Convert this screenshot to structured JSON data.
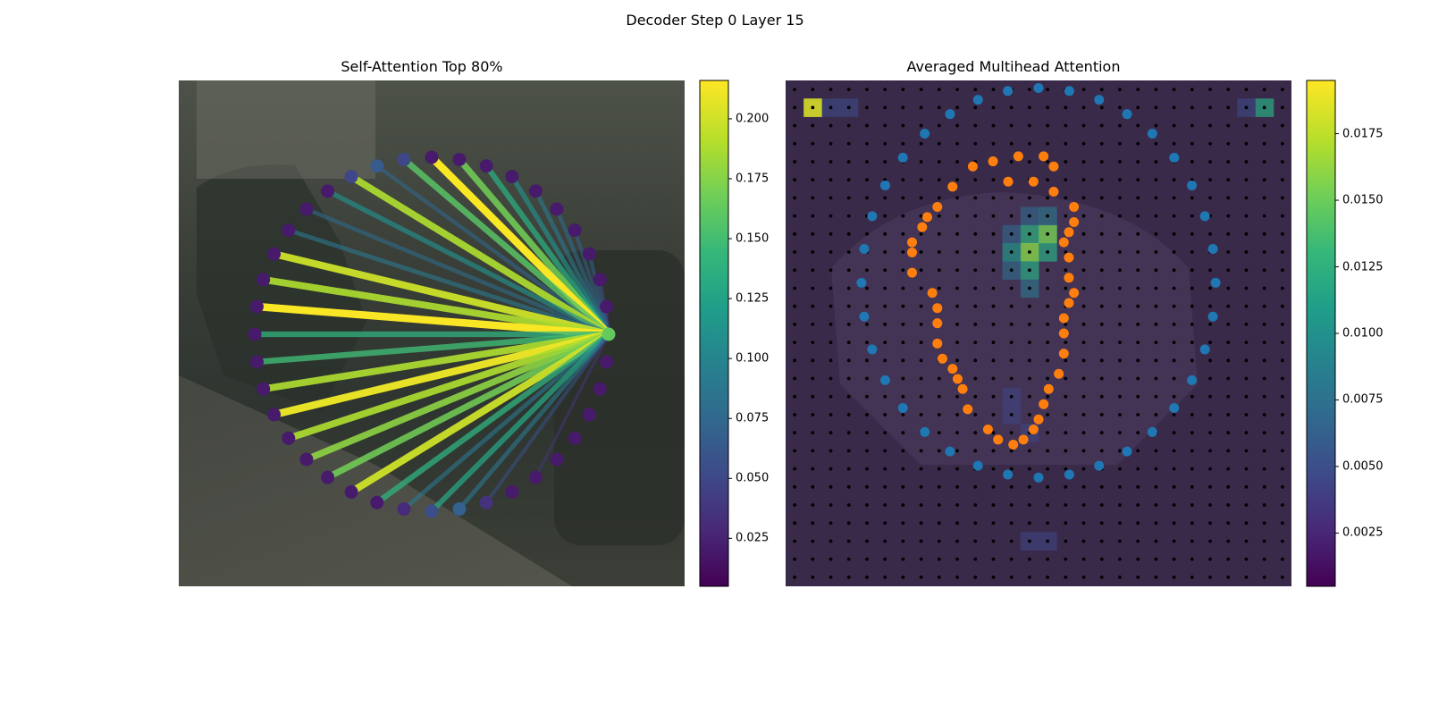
{
  "figure": {
    "suptitle": "Decoder Step 0 Layer 15"
  },
  "colormap": {
    "name": "viridis",
    "stops": [
      "#440154",
      "#482878",
      "#3e4a89",
      "#31688e",
      "#26828e",
      "#1f9e89",
      "#35b779",
      "#6ece58",
      "#b5de2b",
      "#fde725"
    ]
  },
  "chart_data": [
    {
      "type": "scatter",
      "title": "Self-Attention Top 80%",
      "description_series": "ring of 40 points with attention edges to the query point at the right",
      "ring": {
        "count": 40,
        "query_index": 0
      },
      "edges": [
        {
          "to": 1,
          "weight": 0.03
        },
        {
          "to": 2,
          "weight": 0.06
        },
        {
          "to": 3,
          "weight": 0.07
        },
        {
          "to": 4,
          "weight": 0.07
        },
        {
          "to": 5,
          "weight": 0.08
        },
        {
          "to": 6,
          "weight": 0.09
        },
        {
          "to": 7,
          "weight": 0.11
        },
        {
          "to": 8,
          "weight": 0.135
        },
        {
          "to": 9,
          "weight": 0.17
        },
        {
          "to": 10,
          "weight": 0.215
        },
        {
          "to": 11,
          "weight": 0.16
        },
        {
          "to": 12,
          "weight": 0.075
        },
        {
          "to": 13,
          "weight": 0.19
        },
        {
          "to": 14,
          "weight": 0.11
        },
        {
          "to": 15,
          "weight": 0.08
        },
        {
          "to": 16,
          "weight": 0.09
        },
        {
          "to": 17,
          "weight": 0.2
        },
        {
          "to": 18,
          "weight": 0.19
        },
        {
          "to": 19,
          "weight": 0.215
        },
        {
          "to": 20,
          "weight": 0.14
        },
        {
          "to": 21,
          "weight": 0.15
        },
        {
          "to": 22,
          "weight": 0.19
        },
        {
          "to": 23,
          "weight": 0.21
        },
        {
          "to": 24,
          "weight": 0.19
        },
        {
          "to": 25,
          "weight": 0.18
        },
        {
          "to": 26,
          "weight": 0.17
        },
        {
          "to": 27,
          "weight": 0.2
        },
        {
          "to": 28,
          "weight": 0.14
        },
        {
          "to": 29,
          "weight": 0.09
        },
        {
          "to": 30,
          "weight": 0.13
        },
        {
          "to": 31,
          "weight": 0.09
        },
        {
          "to": 32,
          "weight": 0.06
        },
        {
          "to": 34,
          "weight": 0.04
        }
      ],
      "point_weights": [
        0.165,
        0.02,
        0.02,
        0.02,
        0.02,
        0.02,
        0.02,
        0.02,
        0.02,
        0.02,
        0.02,
        0.05,
        0.065,
        0.05,
        0.02,
        0.02,
        0.02,
        0.02,
        0.02,
        0.02,
        0.02,
        0.02,
        0.02,
        0.02,
        0.02,
        0.02,
        0.02,
        0.02,
        0.02,
        0.03,
        0.055,
        0.07,
        0.035,
        0.02,
        0.02,
        0.02,
        0.02,
        0.02,
        0.02,
        0.02
      ],
      "colorbar": {
        "ticks": [
          "0.025",
          "0.050",
          "0.075",
          "0.100",
          "0.125",
          "0.150",
          "0.175",
          "0.200"
        ],
        "range": [
          0.005,
          0.216
        ]
      }
    },
    {
      "type": "heatmap",
      "title": "Averaged Multihead Attention",
      "grid": {
        "rows": 28,
        "cols": 28,
        "background_value": 0.0025
      },
      "hot_cells": [
        {
          "row": 1,
          "col": 1,
          "value": 0.0185
        },
        {
          "row": 1,
          "col": 26,
          "value": 0.012
        },
        {
          "row": 1,
          "col": 2,
          "value": 0.005
        },
        {
          "row": 1,
          "col": 3,
          "value": 0.005
        },
        {
          "row": 1,
          "col": 25,
          "value": 0.005
        },
        {
          "row": 8,
          "col": 14,
          "value": 0.0155
        },
        {
          "row": 8,
          "col": 13,
          "value": 0.0125
        },
        {
          "row": 9,
          "col": 13,
          "value": 0.016
        },
        {
          "row": 9,
          "col": 12,
          "value": 0.0105
        },
        {
          "row": 9,
          "col": 14,
          "value": 0.012
        },
        {
          "row": 10,
          "col": 13,
          "value": 0.012
        },
        {
          "row": 10,
          "col": 12,
          "value": 0.0075
        },
        {
          "row": 11,
          "col": 13,
          "value": 0.008
        },
        {
          "row": 7,
          "col": 13,
          "value": 0.007
        },
        {
          "row": 7,
          "col": 14,
          "value": 0.008
        },
        {
          "row": 8,
          "col": 12,
          "value": 0.007
        },
        {
          "row": 17,
          "col": 12,
          "value": 0.0045
        },
        {
          "row": 18,
          "col": 12,
          "value": 0.0045
        },
        {
          "row": 19,
          "col": 13,
          "value": 0.0045
        },
        {
          "row": 25,
          "col": 13,
          "value": 0.0045
        },
        {
          "row": 25,
          "col": 14,
          "value": 0.0045
        }
      ],
      "blue_ring": {
        "count": 36,
        "cx": 0.5,
        "cy": 0.4,
        "rx": 0.35,
        "ry": 0.385
      },
      "orange_contour": [
        [
          0.44,
          0.2
        ],
        [
          0.49,
          0.2
        ],
        [
          0.53,
          0.22
        ],
        [
          0.57,
          0.25
        ],
        [
          0.57,
          0.28
        ],
        [
          0.56,
          0.3
        ],
        [
          0.55,
          0.32
        ],
        [
          0.56,
          0.35
        ],
        [
          0.56,
          0.39
        ],
        [
          0.57,
          0.42
        ],
        [
          0.56,
          0.44
        ],
        [
          0.55,
          0.47
        ],
        [
          0.55,
          0.5
        ],
        [
          0.55,
          0.54
        ],
        [
          0.54,
          0.58
        ],
        [
          0.52,
          0.61
        ],
        [
          0.51,
          0.64
        ],
        [
          0.5,
          0.67
        ],
        [
          0.49,
          0.69
        ],
        [
          0.47,
          0.71
        ],
        [
          0.45,
          0.72
        ],
        [
          0.42,
          0.71
        ],
        [
          0.4,
          0.69
        ],
        [
          0.36,
          0.65
        ],
        [
          0.35,
          0.61
        ],
        [
          0.34,
          0.59
        ],
        [
          0.33,
          0.57
        ],
        [
          0.31,
          0.55
        ],
        [
          0.3,
          0.52
        ],
        [
          0.3,
          0.48
        ],
        [
          0.3,
          0.45
        ],
        [
          0.29,
          0.42
        ],
        [
          0.25,
          0.38
        ],
        [
          0.25,
          0.34
        ],
        [
          0.25,
          0.32
        ],
        [
          0.27,
          0.29
        ],
        [
          0.28,
          0.27
        ],
        [
          0.3,
          0.25
        ],
        [
          0.33,
          0.21
        ],
        [
          0.37,
          0.17
        ],
        [
          0.41,
          0.16
        ],
        [
          0.46,
          0.15
        ],
        [
          0.51,
          0.15
        ],
        [
          0.53,
          0.17
        ]
      ],
      "colorbar": {
        "ticks": [
          "0.0025",
          "0.0050",
          "0.0075",
          "0.0100",
          "0.0125",
          "0.0150",
          "0.0175"
        ],
        "range": [
          0.0005,
          0.0195
        ]
      }
    }
  ]
}
